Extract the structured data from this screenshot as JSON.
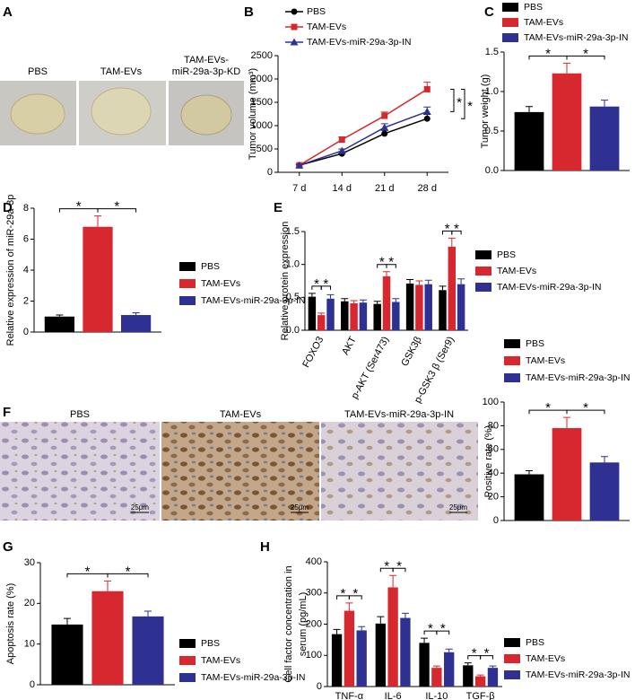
{
  "image_panels": [
    {
      "panel": "A",
      "labels": [
        [
          "PBS"
        ],
        [
          "TAM-EVs"
        ],
        [
          "TAM-EVs-",
          "miR-29a-3p-KD"
        ]
      ]
    },
    {
      "panel": "F",
      "labels": [
        [
          "PBS"
        ],
        [
          "TAM-EVs"
        ],
        [
          "TAM-EVs-miR-29a-3p-IN"
        ]
      ],
      "scale_bar": "25μm"
    }
  ],
  "chart_data": [
    {
      "panel": "B",
      "type": "line",
      "categories": [
        "7 d",
        "14 d",
        "21 d",
        "28 d"
      ],
      "ylabel": "Tumor volume (mm³)",
      "ylim": [
        0,
        2500
      ],
      "yticks": [
        0,
        500,
        1000,
        1500,
        2000,
        2500
      ],
      "series": [
        {
          "name": "PBS",
          "color": "#000000",
          "marker": "circle",
          "values": [
            150,
            400,
            830,
            1150
          ],
          "errors": [
            20,
            40,
            70,
            90
          ]
        },
        {
          "name": "TAM-EVs",
          "color": "#d7282f",
          "marker": "square",
          "values": [
            150,
            700,
            1210,
            1780
          ],
          "errors": [
            20,
            60,
            80,
            150
          ]
        },
        {
          "name": "TAM-EVs-miR-29a-3p-IN",
          "color": "#2e3192",
          "marker": "triangle",
          "values": [
            150,
            460,
            960,
            1300
          ],
          "errors": [
            20,
            40,
            80,
            100
          ]
        }
      ],
      "annotations": [
        "*",
        "*"
      ]
    },
    {
      "panel": "C",
      "type": "bar",
      "categories": [
        null
      ],
      "ylabel": "Tumor weight (g)",
      "ylim": [
        0,
        1.5
      ],
      "yticks": [
        {
          "value": 0,
          "label": "0.0"
        },
        {
          "value": 0.5,
          "label": "0.5"
        },
        {
          "value": 1,
          "label": "1.0"
        },
        {
          "value": 1.5,
          "label": "1.5"
        }
      ],
      "series": [
        {
          "name": "PBS",
          "color": "#000000",
          "values": [
            0.74
          ],
          "errors": [
            0.07
          ]
        },
        {
          "name": "TAM-EVs",
          "color": "#d7282f",
          "values": [
            1.23
          ],
          "errors": [
            0.13
          ]
        },
        {
          "name": "TAM-EVs-miR-29a-3p-IN",
          "color": "#2e3192",
          "values": [
            0.81
          ],
          "errors": [
            0.08
          ]
        }
      ],
      "annotations": [
        "*",
        "*"
      ]
    },
    {
      "panel": "D",
      "type": "bar",
      "categories": [
        null
      ],
      "ylabel": "Relative expression of miR-29a-3p",
      "ylim": [
        0,
        8
      ],
      "yticks": [
        0,
        2,
        4,
        6,
        8
      ],
      "series": [
        {
          "name": "PBS",
          "color": "#000000",
          "values": [
            1.0
          ],
          "errors": [
            0.1
          ]
        },
        {
          "name": "TAM-EVs",
          "color": "#d7282f",
          "values": [
            6.8
          ],
          "errors": [
            0.7
          ]
        },
        {
          "name": "TAM-EVs-miR-29a-3p-IN",
          "color": "#2e3192",
          "values": [
            1.1
          ],
          "errors": [
            0.15
          ]
        }
      ],
      "annotations": [
        "*",
        "*"
      ]
    },
    {
      "panel": "E",
      "type": "bar",
      "categories": [
        "FOXO3",
        "AKT",
        "p-AKT (Ser473)",
        "GSK3β",
        "p-GSK3 β (Ser9)"
      ],
      "ylabel": "Relative protein expression",
      "ylim": [
        0,
        1.5
      ],
      "yticks": [
        {
          "value": 0,
          "label": "0.0"
        },
        {
          "value": 0.5,
          "label": "0.5"
        },
        {
          "value": 1,
          "label": "1.0"
        },
        {
          "value": 1.5,
          "label": "1.5"
        }
      ],
      "series": [
        {
          "name": "PBS",
          "color": "#000000",
          "values": [
            0.51,
            0.44,
            0.4,
            0.71,
            0.61
          ],
          "errors": [
            0.05,
            0.04,
            0.04,
            0.06,
            0.06
          ]
        },
        {
          "name": "TAM-EVs",
          "color": "#d7282f",
          "values": [
            0.23,
            0.41,
            0.82,
            0.69,
            1.27
          ],
          "errors": [
            0.03,
            0.04,
            0.07,
            0.06,
            0.13
          ]
        },
        {
          "name": "TAM-EVs-miR-29a-3p-IN",
          "color": "#2e3192",
          "values": [
            0.48,
            0.42,
            0.43,
            0.7,
            0.7
          ],
          "errors": [
            0.06,
            0.04,
            0.05,
            0.06,
            0.08
          ]
        }
      ],
      "annotations": [
        "*",
        "*",
        "*",
        "*",
        "*",
        "*"
      ]
    },
    {
      "type": "bar",
      "categories": [
        null
      ],
      "ylabel": "Positive rate (%)",
      "ylim": [
        0,
        100
      ],
      "yticks": [
        0,
        20,
        40,
        60,
        80,
        100
      ],
      "series": [
        {
          "name": "PBS",
          "color": "#000000",
          "values": [
            39
          ],
          "errors": [
            3
          ]
        },
        {
          "name": "TAM-EVs",
          "color": "#d7282f",
          "values": [
            78
          ],
          "errors": [
            9
          ]
        },
        {
          "name": "TAM-EVs-miR-29a-3p-IN",
          "color": "#2e3192",
          "values": [
            49
          ],
          "errors": [
            5
          ]
        }
      ],
      "annotations": [
        "*",
        "*"
      ]
    },
    {
      "panel": "G",
      "type": "bar",
      "categories": [
        null
      ],
      "ylabel": "Apoptosis rate (%)",
      "ylim": [
        0,
        30
      ],
      "yticks": [
        0,
        10,
        20,
        30
      ],
      "series": [
        {
          "name": "PBS",
          "color": "#000000",
          "values": [
            14.8
          ],
          "errors": [
            1.5
          ]
        },
        {
          "name": "TAM-EVs",
          "color": "#d7282f",
          "values": [
            23
          ],
          "errors": [
            2.5
          ]
        },
        {
          "name": "TAM-EVs-miR-29a-3p-IN",
          "color": "#2e3192",
          "values": [
            16.8
          ],
          "errors": [
            1.3
          ]
        }
      ],
      "annotations": [
        "*",
        "*"
      ]
    },
    {
      "panel": "H",
      "type": "bar",
      "categories": [
        "TNF-α",
        "IL-6",
        "IL-10",
        "TGF-β"
      ],
      "ylabel": [
        "Cell factor concentration in",
        "serum (pg/mL)"
      ],
      "ylim": [
        0,
        400
      ],
      "yticks": [
        0,
        100,
        200,
        300,
        400
      ],
      "series": [
        {
          "name": "PBS",
          "color": "#000000",
          "values": [
            168,
            202,
            140,
            68
          ],
          "errors": [
            15,
            22,
            15,
            8
          ]
        },
        {
          "name": "TAM-EVs",
          "color": "#d7282f",
          "values": [
            243,
            318,
            60,
            33
          ],
          "errors": [
            25,
            38,
            6,
            4
          ]
        },
        {
          "name": "TAM-EVs-miR-29a-3p-IN",
          "color": "#2e3192",
          "values": [
            180,
            220,
            110,
            60
          ],
          "errors": [
            12,
            15,
            10,
            6
          ]
        }
      ],
      "annotations": [
        "*",
        "*",
        "*",
        "*",
        "*",
        "*",
        "*",
        "*"
      ]
    }
  ]
}
